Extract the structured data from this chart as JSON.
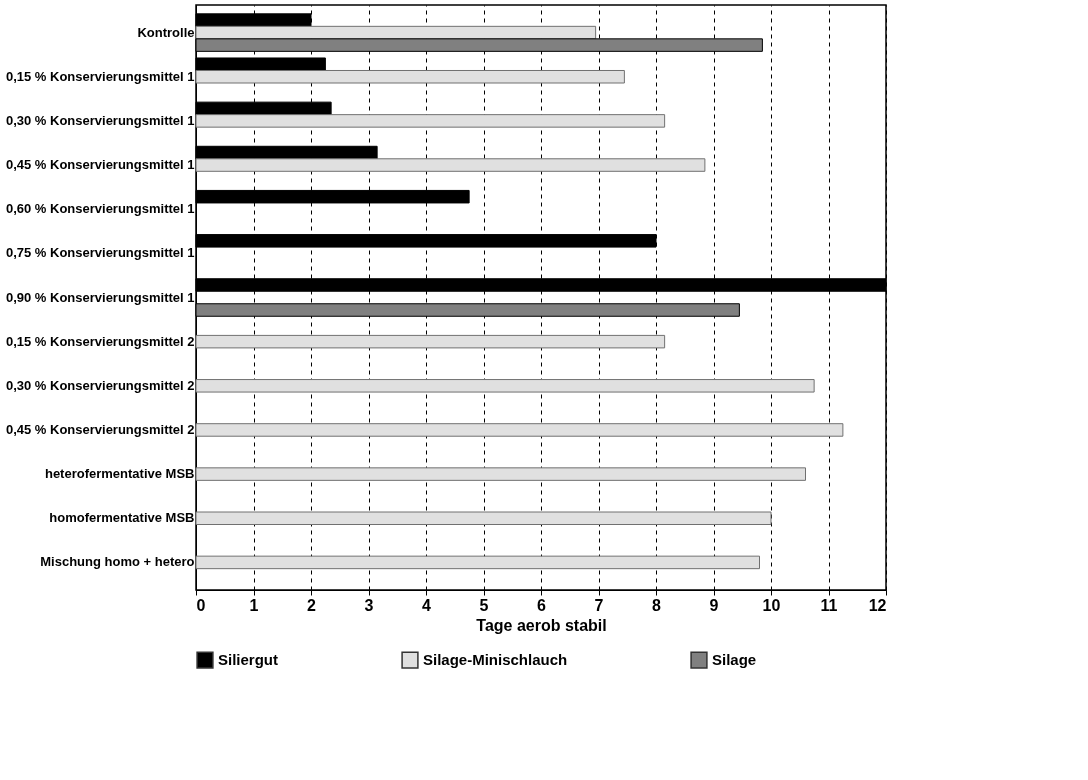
{
  "chart_data": {
    "type": "bar",
    "orientation": "horizontal",
    "xlabel": "Tage aerob stabil",
    "categories": [
      "Kontrolle",
      "0,15 % Konservierungsmittel 1",
      "0,30 % Konservierungsmittel 1",
      "0,45 % Konservierungsmittel 1",
      "0,60 % Konservierungsmittel 1",
      "0,75 % Konservierungsmittel 1",
      "0,90 % Konservierungsmittel 1",
      "0,15 % Konservierungsmittel 2",
      "0,30 % Konservierungsmittel 2",
      "0,45 % Konservierungsmittel 2",
      "heterofermentative MSB",
      "homofermentative MSB",
      "Mischung homo + hetero"
    ],
    "series": [
      {
        "name": "Siliergut",
        "color": "#000000",
        "values": [
          2.0,
          2.25,
          2.35,
          3.15,
          4.75,
          8.0,
          12.0,
          null,
          null,
          null,
          null,
          null,
          null
        ]
      },
      {
        "name": "Silage-Minischlauch",
        "color": "#e0e0e0",
        "values": [
          6.95,
          7.45,
          8.15,
          8.85,
          null,
          null,
          null,
          8.15,
          10.75,
          11.25,
          10.6,
          10.0,
          9.8
        ]
      },
      {
        "name": "Silage",
        "color": "#808080",
        "values": [
          9.85,
          null,
          null,
          null,
          null,
          null,
          9.45,
          null,
          null,
          null,
          null,
          null,
          null
        ]
      }
    ],
    "xlim": [
      0,
      12
    ],
    "xticks": [
      0,
      1,
      2,
      3,
      4,
      5,
      6,
      7,
      8,
      9,
      10,
      11,
      12
    ],
    "grid": "x",
    "legend": "bottom"
  }
}
